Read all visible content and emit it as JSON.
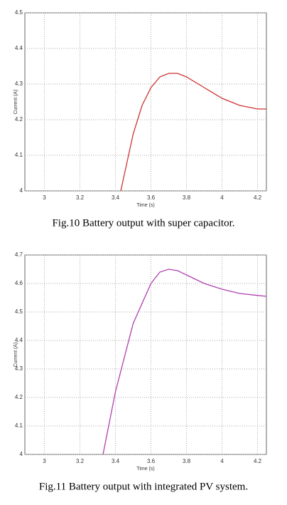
{
  "chart_data": [
    {
      "type": "line",
      "caption": "Fig.10 Battery output with super capacitor.",
      "xlabel": "Time (s)",
      "ylabel": "Current (A)",
      "xlim": [
        2.89,
        4.25
      ],
      "ylim": [
        4,
        4.5
      ],
      "xticks": [
        3,
        3.2,
        3.4,
        3.6,
        3.8,
        4,
        4.2
      ],
      "yticks": [
        4,
        4.1,
        4.2,
        4.3,
        4.4,
        4.5
      ],
      "grid": true,
      "x": [
        3.43,
        3.5,
        3.55,
        3.6,
        3.65,
        3.7,
        3.75,
        3.8,
        3.9,
        4.0,
        4.1,
        4.2,
        4.25
      ],
      "series": [
        {
          "color": "#cc3333",
          "values": [
            4.0,
            4.16,
            4.24,
            4.29,
            4.32,
            4.33,
            4.33,
            4.32,
            4.29,
            4.26,
            4.24,
            4.23,
            4.23
          ]
        }
      ]
    },
    {
      "type": "line",
      "caption": "Fig.11 Battery output with integrated PV system.",
      "xlabel": "Time (s)",
      "ylabel": "Current (A)",
      "xlim": [
        2.89,
        4.25
      ],
      "ylim": [
        4,
        4.7
      ],
      "xticks": [
        3,
        3.2,
        3.4,
        3.6,
        3.8,
        4,
        4.2
      ],
      "yticks": [
        4,
        4.1,
        4.2,
        4.3,
        4.4,
        4.5,
        4.6,
        4.7
      ],
      "grid": true,
      "x": [
        3.33,
        3.4,
        3.5,
        3.6,
        3.65,
        3.7,
        3.75,
        3.8,
        3.9,
        4.0,
        4.1,
        4.2,
        4.25
      ],
      "series": [
        {
          "color": "#b040b0",
          "values": [
            4.0,
            4.22,
            4.46,
            4.6,
            4.64,
            4.65,
            4.645,
            4.63,
            4.6,
            4.58,
            4.565,
            4.558,
            4.555
          ]
        }
      ]
    }
  ]
}
